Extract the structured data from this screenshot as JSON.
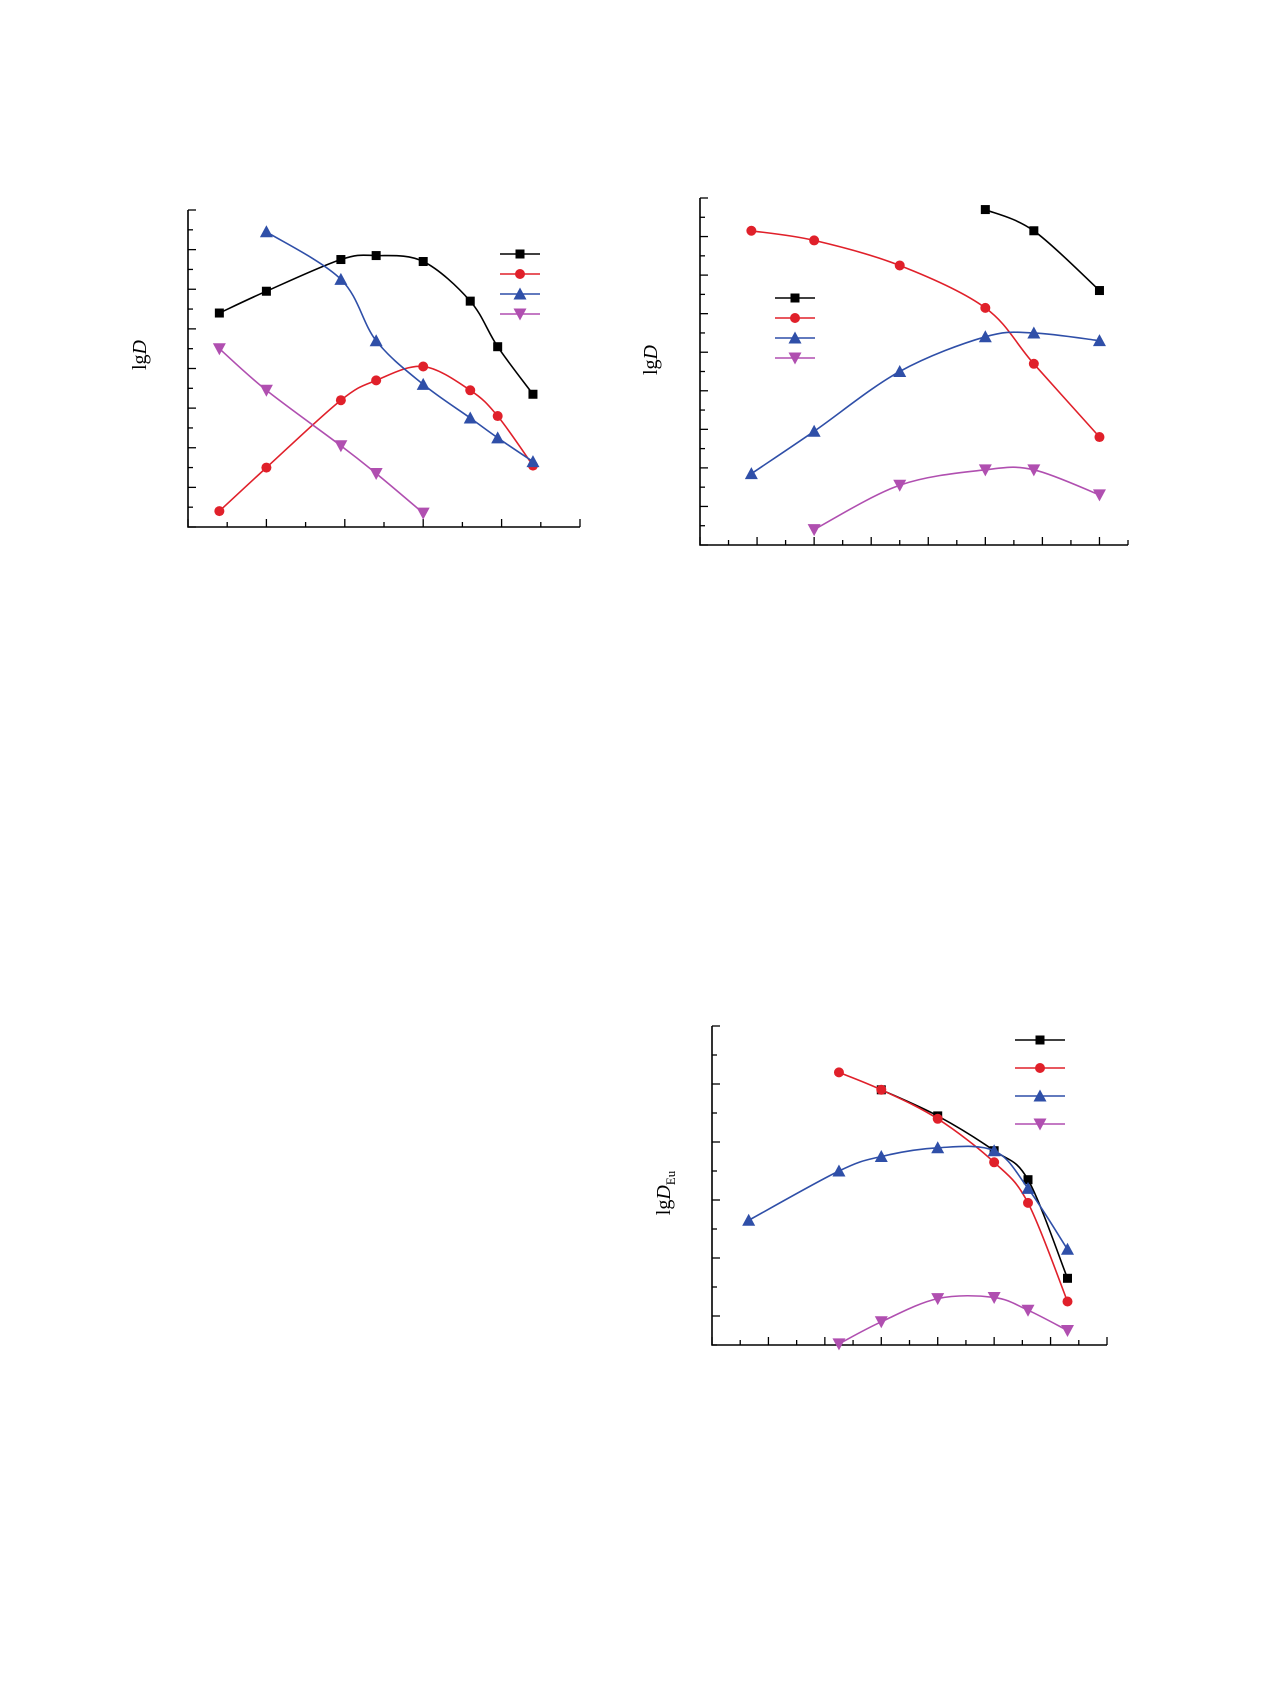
{
  "chart_data": [
    {
      "type": "line",
      "title": "",
      "xlabel": "",
      "ylabel": "lgD",
      "ylabel_sub": "",
      "xlim": [
        0,
        10
      ],
      "ylim": [
        0,
        8
      ],
      "legend_position": "top-right",
      "grid": false,
      "series": [
        {
          "name": "",
          "color": "#000000",
          "marker": "square",
          "x": [
            0.8,
            2.0,
            3.9,
            4.8,
            6.0,
            7.2,
            7.9,
            8.8
          ],
          "y": [
            5.4,
            5.95,
            6.75,
            6.85,
            6.7,
            5.7,
            4.55,
            3.35
          ]
        },
        {
          "name": "",
          "color": "#e0202a",
          "marker": "circle",
          "x": [
            0.8,
            2.0,
            3.9,
            4.8,
            6.0,
            7.2,
            7.9,
            8.8
          ],
          "y": [
            0.4,
            1.5,
            3.2,
            3.7,
            4.05,
            3.45,
            2.8,
            1.55
          ]
        },
        {
          "name": "",
          "color": "#2f4fa8",
          "marker": "triangle-up",
          "x": [
            2.0,
            3.9,
            4.8,
            6.0,
            7.2,
            7.9,
            8.8
          ],
          "y": [
            7.45,
            6.25,
            4.7,
            3.6,
            2.75,
            2.25,
            1.65
          ]
        },
        {
          "name": "",
          "color": "#b04fb0",
          "marker": "triangle-down",
          "x": [
            0.8,
            2.0,
            3.9,
            4.8,
            6.0
          ],
          "y": [
            4.5,
            3.45,
            2.05,
            1.35,
            0.35
          ]
        }
      ]
    },
    {
      "type": "line",
      "title": "",
      "xlabel": "",
      "ylabel": "lgD",
      "ylabel_sub": "",
      "xlim": [
        0,
        15
      ],
      "ylim": [
        0,
        9
      ],
      "legend_position": "top-left",
      "grid": false,
      "series": [
        {
          "name": "",
          "color": "#000000",
          "marker": "square",
          "x": [
            10.0,
            11.7,
            14.0
          ],
          "y": [
            8.7,
            8.15,
            6.6
          ]
        },
        {
          "name": "",
          "color": "#e0202a",
          "marker": "circle",
          "x": [
            1.8,
            4.0,
            7.0,
            10.0,
            11.7,
            14.0
          ],
          "y": [
            8.15,
            7.9,
            7.25,
            6.15,
            4.7,
            2.8
          ]
        },
        {
          "name": "",
          "color": "#2f4fa8",
          "marker": "triangle-up",
          "x": [
            1.8,
            4.0,
            7.0,
            10.0,
            11.7,
            14.0
          ],
          "y": [
            1.85,
            2.95,
            4.5,
            5.4,
            5.5,
            5.3
          ]
        },
        {
          "name": "",
          "color": "#b04fb0",
          "marker": "triangle-down",
          "x": [
            4.0,
            7.0,
            10.0,
            11.7,
            14.0
          ],
          "y": [
            0.4,
            1.55,
            1.95,
            1.95,
            1.3
          ]
        }
      ]
    },
    {
      "type": "line",
      "title": "",
      "xlabel": "",
      "ylabel": "lgD",
      "ylabel_sub": "Eu",
      "xlim": [
        0,
        14
      ],
      "ylim": [
        0,
        5.5
      ],
      "legend_position": "top-right",
      "grid": false,
      "series": [
        {
          "name": "",
          "color": "#000000",
          "marker": "square",
          "x": [
            6.0,
            8.0,
            10.0,
            11.2,
            12.6
          ],
          "y": [
            4.4,
            3.95,
            3.35,
            2.85,
            1.15
          ]
        },
        {
          "name": "",
          "color": "#e0202a",
          "marker": "circle",
          "x": [
            4.5,
            6.0,
            8.0,
            10.0,
            11.2,
            12.6
          ],
          "y": [
            4.7,
            4.4,
            3.9,
            3.15,
            2.45,
            0.75
          ]
        },
        {
          "name": "",
          "color": "#2f4fa8",
          "marker": "triangle-up",
          "x": [
            1.3,
            4.5,
            6.0,
            8.0,
            10.0,
            11.2,
            12.6
          ],
          "y": [
            2.15,
            3.0,
            3.25,
            3.4,
            3.35,
            2.7,
            1.65
          ]
        },
        {
          "name": "",
          "color": "#b04fb0",
          "marker": "triangle-down",
          "x": [
            4.5,
            6.0,
            8.0,
            10.0,
            11.2,
            12.6
          ],
          "y": [
            0.02,
            0.4,
            0.8,
            0.82,
            0.6,
            0.25
          ]
        }
      ]
    }
  ]
}
